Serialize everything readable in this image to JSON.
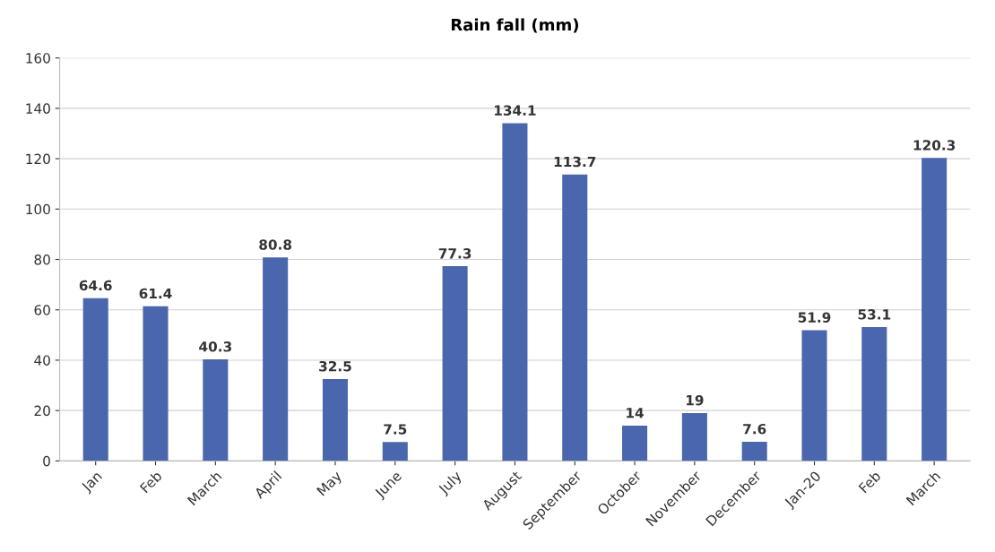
{
  "chart_data": {
    "type": "bar",
    "title": "Rain fall (mm)",
    "categories": [
      "Jan",
      "Feb",
      "March",
      "April",
      "May",
      "June",
      "July",
      "August",
      "September",
      "October",
      "November",
      "December",
      "Jan-20",
      "Feb",
      "March"
    ],
    "values": [
      64.6,
      61.4,
      40.3,
      80.8,
      32.5,
      7.5,
      77.3,
      134.1,
      113.7,
      14,
      19,
      7.6,
      51.9,
      53.1,
      120.3
    ],
    "color": "#4a66ac",
    "ylim": [
      0,
      160
    ],
    "yticks": [
      0,
      20,
      40,
      60,
      80,
      100,
      120,
      140,
      160
    ],
    "grid": "y",
    "data_labels": true,
    "legend": false
  }
}
